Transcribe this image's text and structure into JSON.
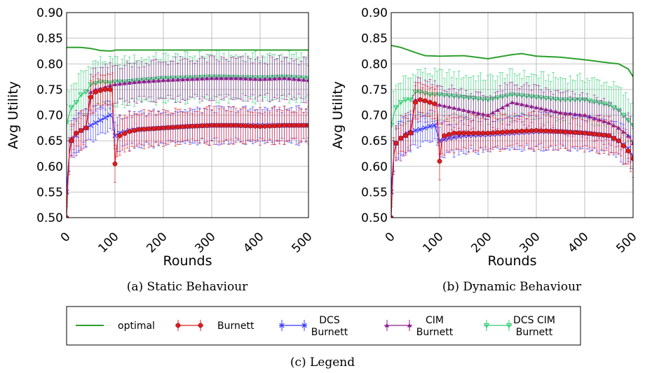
{
  "chart_data": [
    {
      "type": "line",
      "caption": "(a) Static Behaviour",
      "xlabel": "Rounds",
      "ylabel": "Avg Utility",
      "xlim": [
        0,
        500
      ],
      "ylim": [
        0.5,
        0.9
      ],
      "xticks": [
        "0",
        "100",
        "200",
        "300",
        "400",
        "500"
      ],
      "yticks": [
        "0.50",
        "0.55",
        "0.60",
        "0.65",
        "0.70",
        "0.75",
        "0.80",
        "0.85",
        "0.90"
      ],
      "grid": true,
      "series": [
        {
          "name": "optimal",
          "color": "#2ca02c",
          "x": [
            0,
            30,
            50,
            70,
            95,
            100,
            150,
            200,
            300,
            400,
            500
          ],
          "y": [
            0.832,
            0.832,
            0.83,
            0.826,
            0.825,
            0.827,
            0.827,
            0.827,
            0.827,
            0.827,
            0.827
          ]
        },
        {
          "name": "DCS CIM Burnett",
          "color": "#2ecc71",
          "x": [
            0,
            5,
            10,
            20,
            30,
            40,
            50,
            60,
            70,
            80,
            90,
            100,
            120,
            150,
            200,
            250,
            300,
            350,
            400,
            450,
            500
          ],
          "y": [
            0.685,
            0.7,
            0.715,
            0.725,
            0.74,
            0.745,
            0.76,
            0.762,
            0.765,
            0.764,
            0.763,
            0.765,
            0.765,
            0.768,
            0.772,
            0.773,
            0.775,
            0.774,
            0.773,
            0.775,
            0.772
          ],
          "err": 0.04
        },
        {
          "name": "CIM Burnett",
          "color": "#8e1e8e",
          "x": [
            0,
            5,
            10,
            20,
            30,
            40,
            50,
            60,
            70,
            80,
            90,
            100,
            120,
            150,
            200,
            250,
            300,
            350,
            400,
            450,
            500
          ],
          "y": [
            0.55,
            0.62,
            0.655,
            0.665,
            0.67,
            0.675,
            0.745,
            0.75,
            0.752,
            0.755,
            0.758,
            0.76,
            0.762,
            0.765,
            0.768,
            0.77,
            0.772,
            0.772,
            0.77,
            0.772,
            0.768
          ],
          "err": 0.035
        },
        {
          "name": "DCS Burnett",
          "color": "#3333ff",
          "x": [
            0,
            5,
            10,
            20,
            30,
            40,
            50,
            60,
            70,
            80,
            90,
            95,
            100,
            110,
            130,
            150,
            200,
            250,
            300,
            350,
            400,
            450,
            500
          ],
          "y": [
            0.55,
            0.62,
            0.65,
            0.66,
            0.67,
            0.675,
            0.68,
            0.685,
            0.69,
            0.695,
            0.7,
            0.695,
            0.66,
            0.665,
            0.67,
            0.672,
            0.675,
            0.678,
            0.68,
            0.68,
            0.68,
            0.68,
            0.68
          ],
          "err": 0.03
        },
        {
          "name": "Burnett",
          "color": "#e31a1c",
          "x": [
            0,
            5,
            10,
            20,
            30,
            40,
            50,
            60,
            70,
            80,
            90,
            95,
            100,
            105,
            110,
            130,
            150,
            200,
            250,
            300,
            350,
            400,
            450,
            500
          ],
          "y": [
            0.5,
            0.62,
            0.65,
            0.665,
            0.67,
            0.675,
            0.735,
            0.745,
            0.748,
            0.75,
            0.75,
            0.745,
            0.605,
            0.65,
            0.66,
            0.668,
            0.672,
            0.675,
            0.678,
            0.68,
            0.68,
            0.678,
            0.68,
            0.68
          ],
          "err": 0.03
        }
      ]
    },
    {
      "type": "line",
      "caption": "(b) Dynamic Behaviour",
      "xlabel": "Rounds",
      "ylabel": "Avg Utility",
      "xlim": [
        0,
        500
      ],
      "ylim": [
        0.5,
        0.9
      ],
      "xticks": [
        "0",
        "100",
        "200",
        "300",
        "400",
        "500"
      ],
      "yticks": [
        "0.50",
        "0.55",
        "0.60",
        "0.65",
        "0.70",
        "0.75",
        "0.80",
        "0.85",
        "0.90"
      ],
      "grid": true,
      "series": [
        {
          "name": "optimal",
          "color": "#2ca02c",
          "x": [
            0,
            20,
            50,
            70,
            100,
            150,
            200,
            250,
            270,
            300,
            350,
            400,
            450,
            470,
            490,
            500
          ],
          "y": [
            0.836,
            0.832,
            0.822,
            0.816,
            0.815,
            0.816,
            0.81,
            0.818,
            0.82,
            0.815,
            0.813,
            0.808,
            0.802,
            0.8,
            0.79,
            0.775
          ]
        },
        {
          "name": "DCS CIM Burnett",
          "color": "#2ecc71",
          "x": [
            0,
            5,
            10,
            20,
            30,
            40,
            50,
            60,
            80,
            100,
            150,
            200,
            250,
            300,
            350,
            400,
            450,
            470,
            490,
            500
          ],
          "y": [
            0.68,
            0.7,
            0.715,
            0.725,
            0.73,
            0.73,
            0.745,
            0.745,
            0.74,
            0.74,
            0.735,
            0.73,
            0.74,
            0.735,
            0.73,
            0.73,
            0.72,
            0.71,
            0.69,
            0.68
          ],
          "err": 0.04
        },
        {
          "name": "CIM Burnett",
          "color": "#8e1e8e",
          "x": [
            0,
            5,
            10,
            20,
            30,
            40,
            50,
            60,
            80,
            100,
            150,
            200,
            250,
            300,
            350,
            400,
            450,
            470,
            490,
            500
          ],
          "y": [
            0.55,
            0.62,
            0.645,
            0.655,
            0.665,
            0.67,
            0.73,
            0.73,
            0.725,
            0.72,
            0.71,
            0.7,
            0.725,
            0.715,
            0.705,
            0.7,
            0.685,
            0.675,
            0.66,
            0.645
          ],
          "err": 0.035
        },
        {
          "name": "DCS Burnett",
          "color": "#3333ff",
          "x": [
            0,
            5,
            10,
            20,
            30,
            40,
            50,
            60,
            70,
            80,
            90,
            100,
            120,
            150,
            200,
            250,
            300,
            350,
            400,
            450,
            470,
            490,
            500
          ],
          "y": [
            0.55,
            0.62,
            0.645,
            0.655,
            0.66,
            0.665,
            0.67,
            0.672,
            0.675,
            0.678,
            0.68,
            0.65,
            0.655,
            0.66,
            0.662,
            0.665,
            0.668,
            0.668,
            0.665,
            0.66,
            0.65,
            0.635,
            0.62
          ],
          "err": 0.03
        },
        {
          "name": "Burnett",
          "color": "#e31a1c",
          "x": [
            0,
            5,
            10,
            20,
            30,
            40,
            50,
            60,
            70,
            80,
            90,
            95,
            100,
            105,
            110,
            130,
            150,
            200,
            250,
            300,
            350,
            400,
            450,
            470,
            490,
            500
          ],
          "y": [
            0.5,
            0.62,
            0.645,
            0.655,
            0.66,
            0.665,
            0.725,
            0.73,
            0.728,
            0.725,
            0.722,
            0.718,
            0.61,
            0.655,
            0.66,
            0.665,
            0.665,
            0.665,
            0.668,
            0.67,
            0.668,
            0.665,
            0.66,
            0.65,
            0.63,
            0.615
          ],
          "err": 0.03
        }
      ]
    }
  ],
  "legend": {
    "caption": "(c) Legend",
    "entries": [
      {
        "lines": [
          "optimal"
        ],
        "color": "#2ca02c",
        "marker": "none"
      },
      {
        "lines": [
          "Burnett"
        ],
        "color": "#e31a1c",
        "marker": "circle"
      },
      {
        "lines": [
          "DCS",
          "Burnett"
        ],
        "color": "#3333ff",
        "marker": "x"
      },
      {
        "lines": [
          "CIM",
          "Burnett"
        ],
        "color": "#8e1e8e",
        "marker": "triangle"
      },
      {
        "lines": [
          "DCS CIM",
          "Burnett"
        ],
        "color": "#2ecc71",
        "marker": "triangle-down"
      }
    ]
  }
}
